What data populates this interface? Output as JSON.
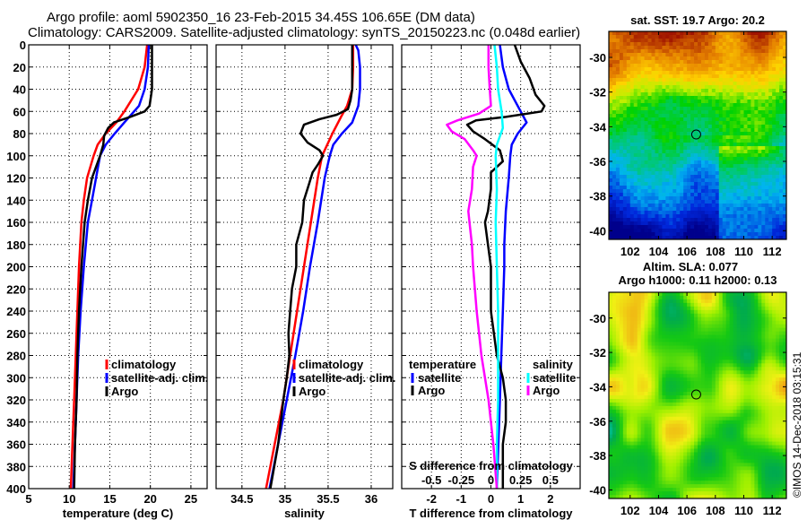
{
  "header": {
    "title_line1": "Argo profile: aoml 5902350_16 23-Feb-2015 34.45S 106.65E (DM data)",
    "title_line2": "Climatology: CARS2009. Satellite-adjusted climatology: synTS_20150223.nc (0.048d earlier)"
  },
  "colors": {
    "climatology": "#ff0000",
    "satellite_adj": "#0000ff",
    "argo": "#000000",
    "sal_satellite": "#00ffff",
    "sal_argo": "#ff00ff"
  },
  "footer": {
    "credit": "©IMOS 14-Dec-2018 03:15:31"
  },
  "chart_data": [
    {
      "type": "line",
      "id": "temperature",
      "xlabel": "temperature (deg C)",
      "ylabel": "",
      "xlim": [
        5,
        27
      ],
      "ylim": [
        400,
        0
      ],
      "xticks": [
        5,
        10,
        15,
        20,
        25
      ],
      "yticks": [
        0,
        20,
        40,
        60,
        80,
        100,
        120,
        140,
        160,
        180,
        200,
        220,
        240,
        260,
        280,
        300,
        320,
        340,
        360,
        380,
        400
      ],
      "grid": true,
      "legend": [
        "climatology",
        "satellite-adj. clim.",
        "Argo"
      ],
      "legend_position": "lower-right",
      "series": [
        {
          "name": "climatology",
          "color": "#ff0000",
          "depth": [
            0,
            20,
            40,
            60,
            70,
            80,
            90,
            100,
            120,
            140,
            160,
            200,
            240,
            280,
            320,
            360,
            400
          ],
          "values": [
            19.6,
            19.3,
            18.5,
            16.8,
            15.8,
            14.5,
            13.5,
            13.0,
            12.2,
            11.8,
            11.5,
            11.2,
            11.0,
            10.8,
            10.6,
            10.4,
            10.2
          ]
        },
        {
          "name": "satellite-adj. clim.",
          "color": "#0000ff",
          "depth": [
            0,
            20,
            40,
            55,
            70,
            80,
            90,
            100,
            120,
            140,
            160,
            200,
            240,
            280,
            320,
            360,
            400
          ],
          "values": [
            19.8,
            19.7,
            19.3,
            18.6,
            16.8,
            15.6,
            14.5,
            13.8,
            13.3,
            12.8,
            12.3,
            11.8,
            11.4,
            11.1,
            10.9,
            10.7,
            10.5
          ]
        },
        {
          "name": "Argo",
          "color": "#000000",
          "depth": [
            0,
            20,
            40,
            55,
            60,
            65,
            70,
            75,
            82,
            90,
            100,
            120,
            140,
            160,
            200,
            240,
            280,
            320,
            360,
            400
          ],
          "values": [
            20.2,
            20.2,
            20.2,
            19.9,
            19.3,
            17.5,
            15.5,
            14.8,
            14.3,
            14.2,
            13.8,
            12.8,
            12.3,
            11.9,
            11.5,
            11.2,
            11.0,
            10.9,
            10.7,
            10.6
          ]
        }
      ]
    },
    {
      "type": "line",
      "id": "salinity",
      "xlabel": "salinity",
      "xlim": [
        34.2,
        36.25
      ],
      "ylim": [
        400,
        0
      ],
      "xticks": [
        34.5,
        35,
        35.5,
        36
      ],
      "grid": true,
      "legend": [
        "climatology",
        "satellite-adj. clim.",
        "Argo"
      ],
      "legend_position": "lower-right",
      "series": [
        {
          "name": "climatology",
          "color": "#ff0000",
          "depth": [
            0,
            20,
            40,
            55,
            65,
            80,
            100,
            120,
            160,
            200,
            240,
            280,
            320,
            360,
            400
          ],
          "values": [
            35.79,
            35.79,
            35.78,
            35.72,
            35.65,
            35.55,
            35.43,
            35.38,
            35.3,
            35.22,
            35.14,
            35.06,
            34.98,
            34.88,
            34.78
          ]
        },
        {
          "name": "satellite-adj. clim.",
          "color": "#0000ff",
          "depth": [
            0,
            5,
            20,
            40,
            55,
            70,
            80,
            90,
            100,
            120,
            160,
            200,
            240,
            280,
            320,
            360,
            400
          ],
          "values": [
            35.82,
            35.85,
            35.87,
            35.87,
            35.85,
            35.78,
            35.66,
            35.56,
            35.52,
            35.46,
            35.38,
            35.29,
            35.21,
            35.12,
            35.02,
            34.92,
            34.82
          ]
        },
        {
          "name": "Argo",
          "color": "#000000",
          "depth": [
            0,
            20,
            40,
            50,
            58,
            63,
            67,
            72,
            80,
            88,
            95,
            100,
            108,
            115,
            125,
            140,
            160,
            180,
            200,
            220,
            240,
            260,
            280,
            300,
            320,
            360,
            400
          ],
          "values": [
            35.78,
            35.78,
            35.78,
            35.76,
            35.73,
            35.6,
            35.4,
            35.22,
            35.18,
            35.26,
            35.4,
            35.44,
            35.38,
            35.32,
            35.28,
            35.22,
            35.2,
            35.13,
            35.13,
            35.08,
            35.06,
            35.04,
            35.05,
            35.02,
            34.98,
            34.92,
            34.83
          ]
        }
      ]
    },
    {
      "type": "line",
      "id": "difference",
      "xlabel": "T difference from climatology",
      "xlim": [
        -3,
        3
      ],
      "ylim": [
        400,
        0
      ],
      "xticks": [
        -2,
        -1,
        0,
        1,
        2
      ],
      "secondary_xlabel": "S difference from climatology",
      "secondary_xlim": [
        -0.75,
        0.75
      ],
      "secondary_xticks": [
        -0.5,
        -0.25,
        0,
        0.25,
        0.5
      ],
      "secondary_xtick_labels": [
        "-0.5",
        "-0.25",
        "0",
        "0.25",
        "0.5"
      ],
      "grid": true,
      "legend_temperature": {
        "title": "temperature",
        "items": [
          "satellite",
          "Argo"
        ]
      },
      "legend_salinity": {
        "title": "salinity",
        "items": [
          "satellite",
          "Argo"
        ]
      },
      "series": [
        {
          "name": "temperature satellite",
          "color": "#0000ff",
          "axis": "T",
          "depth": [
            0,
            20,
            40,
            60,
            70,
            80,
            90,
            100,
            120,
            150,
            180,
            200,
            240,
            280,
            320,
            360,
            400
          ],
          "values": [
            0.3,
            0.4,
            0.6,
            1.0,
            1.2,
            0.9,
            0.7,
            0.65,
            0.6,
            0.5,
            0.45,
            0.45,
            0.4,
            0.35,
            0.3,
            0.25,
            0.2
          ]
        },
        {
          "name": "temperature Argo",
          "color": "#000000",
          "axis": "T",
          "depth": [
            0,
            15,
            30,
            45,
            55,
            60,
            65,
            68,
            72,
            78,
            85,
            95,
            105,
            115,
            130,
            150,
            160,
            180,
            200,
            240,
            280,
            300,
            320,
            340,
            360,
            400
          ],
          "values": [
            0.8,
            1.0,
            1.3,
            1.5,
            1.8,
            1.7,
            0.5,
            -0.5,
            -0.8,
            -0.6,
            -0.2,
            0.3,
            0.4,
            0.0,
            0.0,
            -0.1,
            -0.2,
            -0.1,
            0.0,
            0.0,
            0.2,
            0.4,
            0.5,
            0.5,
            0.4,
            0.4
          ]
        },
        {
          "name": "salinity satellite",
          "color": "#00ffff",
          "axis": "S",
          "depth": [
            0,
            20,
            40,
            60,
            75,
            90,
            100,
            130,
            160,
            200,
            240,
            280,
            320,
            360,
            400
          ],
          "values": [
            0.03,
            0.05,
            0.06,
            0.09,
            0.1,
            0.05,
            0.04,
            0.05,
            0.04,
            0.05,
            0.06,
            0.06,
            0.06,
            0.05,
            0.05
          ]
        },
        {
          "name": "salinity Argo",
          "color": "#ff00ff",
          "axis": "S",
          "depth": [
            0,
            20,
            40,
            55,
            62,
            68,
            72,
            78,
            85,
            95,
            100,
            110,
            130,
            150,
            160,
            180,
            200,
            240,
            280,
            320,
            360,
            400
          ],
          "values": [
            -0.02,
            -0.02,
            -0.01,
            0.0,
            -0.1,
            -0.28,
            -0.37,
            -0.33,
            -0.22,
            -0.15,
            -0.12,
            -0.15,
            -0.16,
            -0.19,
            -0.18,
            -0.16,
            -0.15,
            -0.12,
            -0.08,
            -0.02,
            0.02,
            0.05
          ]
        }
      ]
    },
    {
      "type": "heatmap",
      "id": "sst_map",
      "title": "sat. SST: 19.7 Argo: 20.2",
      "xlim": [
        100.5,
        113
      ],
      "ylim": [
        -40.5,
        -28.5
      ],
      "xticks": [
        102,
        104,
        106,
        108,
        110,
        112
      ],
      "yticks": [
        -30,
        -32,
        -34,
        -36,
        -38,
        -40
      ],
      "marker": {
        "lon": 106.65,
        "lat": -34.45
      },
      "colormap": "jet-warm (blue to green to yellow to red)"
    },
    {
      "type": "heatmap",
      "id": "sla_map",
      "title_line1": "Altim. SLA: 0.077",
      "title_line2": "Argo h1000: 0.11 h2000: 0.13",
      "xlim": [
        100.5,
        113
      ],
      "ylim": [
        -40.5,
        -28.5
      ],
      "xticks": [
        102,
        104,
        106,
        108,
        110,
        112
      ],
      "yticks": [
        -30,
        -32,
        -34,
        -36,
        -38,
        -40
      ],
      "marker": {
        "lon": 106.65,
        "lat": -34.45
      },
      "colormap": "green-yellow-orange"
    }
  ]
}
